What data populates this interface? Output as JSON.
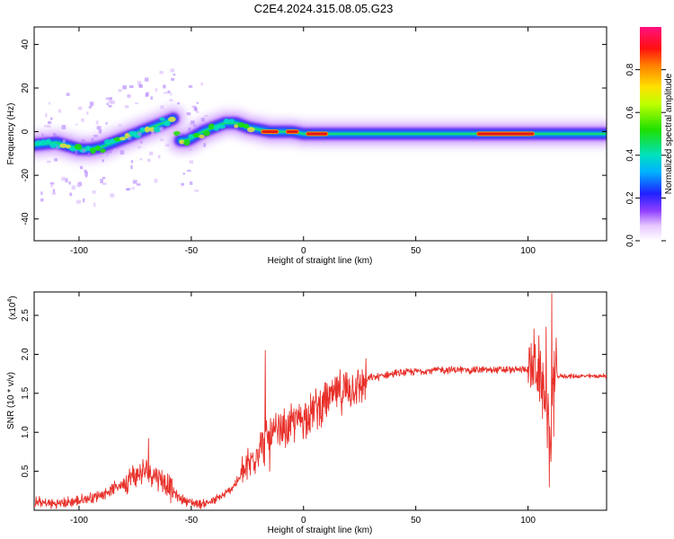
{
  "title": "C2E4.2024.315.08.05.G23",
  "chart_data": [
    {
      "type": "heatmap",
      "xlabel": "Height of straight line (km)",
      "ylabel": "Frequency (Hz)",
      "xlim": [
        -120,
        135
      ],
      "ylim": [
        -50,
        48
      ],
      "xticks": [
        -100,
        -50,
        0,
        50,
        100
      ],
      "yticks": [
        -40,
        -20,
        0,
        20,
        40
      ],
      "colorbar": {
        "label": "Normalized spectral amplitude",
        "range": [
          0,
          1
        ],
        "ticks": [
          "0.0",
          "0.2",
          "0.4",
          "0.6",
          "0.8"
        ],
        "tick_values": [
          0,
          0.2,
          0.4,
          0.6,
          0.8
        ]
      },
      "ridge": {
        "x": [
          -120,
          -110,
          -100,
          -95,
          -90,
          -85,
          -80,
          -75,
          -70,
          -65,
          -60,
          -58,
          -55,
          -52,
          -50,
          -45,
          -40,
          -35,
          -30,
          -25,
          -20,
          -15,
          -10,
          -5,
          0,
          5,
          10,
          20,
          30,
          50,
          70,
          90,
          100,
          105,
          110,
          120,
          135
        ],
        "y": [
          -6,
          -5,
          -8,
          -8,
          -7,
          -5,
          -3,
          -1,
          1,
          3,
          5,
          6,
          -4,
          -4,
          -3,
          0,
          2,
          4,
          4,
          2,
          1,
          0,
          0,
          0,
          -1,
          -1,
          -1,
          -1,
          -1,
          -1,
          -1,
          -1,
          -1,
          -1,
          -1,
          -1,
          -1
        ],
        "peak_segments": [
          [
            -18,
            -12
          ],
          [
            -7,
            -3
          ],
          [
            2,
            10
          ],
          [
            78,
            102
          ]
        ]
      }
    },
    {
      "type": "line",
      "xlabel": "Height of straight line (km)",
      "ylabel": "SNR (10 * v/v)",
      "y_multiplier": "(x10",
      "y_multiplier_exp": "4",
      "y_multiplier_close": ")",
      "xlim": [
        -120,
        135
      ],
      "ylim": [
        0,
        2.8
      ],
      "xticks": [
        -100,
        -50,
        0,
        50,
        100
      ],
      "yticks": [
        0.5,
        1.0,
        1.5,
        2.0,
        2.5
      ],
      "ytick_labels": [
        "0.5",
        "1.0",
        "1.5",
        "2.0",
        "2.5"
      ],
      "color": "#e8302a",
      "series": [
        {
          "x": [
            -120,
            -110,
            -100,
            -90,
            -80,
            -75,
            -70,
            -65,
            -60,
            -55,
            -50,
            -45,
            -40,
            -35,
            -30,
            -25,
            -20,
            -15,
            -10,
            -5,
            0,
            5,
            10,
            15,
            20,
            25,
            30,
            40,
            50,
            60,
            70,
            80,
            90,
            95,
            100,
            103,
            105,
            107,
            109,
            110,
            111,
            112,
            113,
            115,
            120,
            125,
            130,
            135
          ],
          "y": [
            0.1,
            0.08,
            0.12,
            0.2,
            0.35,
            0.45,
            0.5,
            0.45,
            0.3,
            0.15,
            0.1,
            0.08,
            0.12,
            0.2,
            0.35,
            0.55,
            0.8,
            0.95,
            1.0,
            1.1,
            1.2,
            1.3,
            1.4,
            1.5,
            1.55,
            1.6,
            1.7,
            1.75,
            1.78,
            1.8,
            1.8,
            1.8,
            1.8,
            1.8,
            1.82,
            1.85,
            1.75,
            1.5,
            1.2,
            0.8,
            1.6,
            1.75,
            1.72,
            1.72,
            1.72,
            1.72,
            1.72,
            1.72
          ],
          "spikes": [
            {
              "x": -69,
              "y": 0.92
            },
            {
              "x": -17,
              "y": 2.05
            },
            {
              "x": -15,
              "y": 0.5
            },
            {
              "x": 108,
              "y": 2.35
            },
            {
              "x": 109.5,
              "y": 0.3
            },
            {
              "x": 110.5,
              "y": 2.78
            },
            {
              "x": 111.5,
              "y": 0.95
            }
          ],
          "noise": [
            {
              "x0": -120,
              "x1": -80,
              "amp": 0.06
            },
            {
              "x0": -80,
              "x1": -58,
              "amp": 0.14
            },
            {
              "x0": -58,
              "x1": -28,
              "amp": 0.05
            },
            {
              "x0": -28,
              "x1": 28,
              "amp": 0.22
            },
            {
              "x0": 28,
              "x1": 100,
              "amp": 0.04
            },
            {
              "x0": 100,
              "x1": 113,
              "amp": 0.35
            },
            {
              "x0": 113,
              "x1": 135,
              "amp": 0.025
            }
          ]
        }
      ]
    }
  ]
}
